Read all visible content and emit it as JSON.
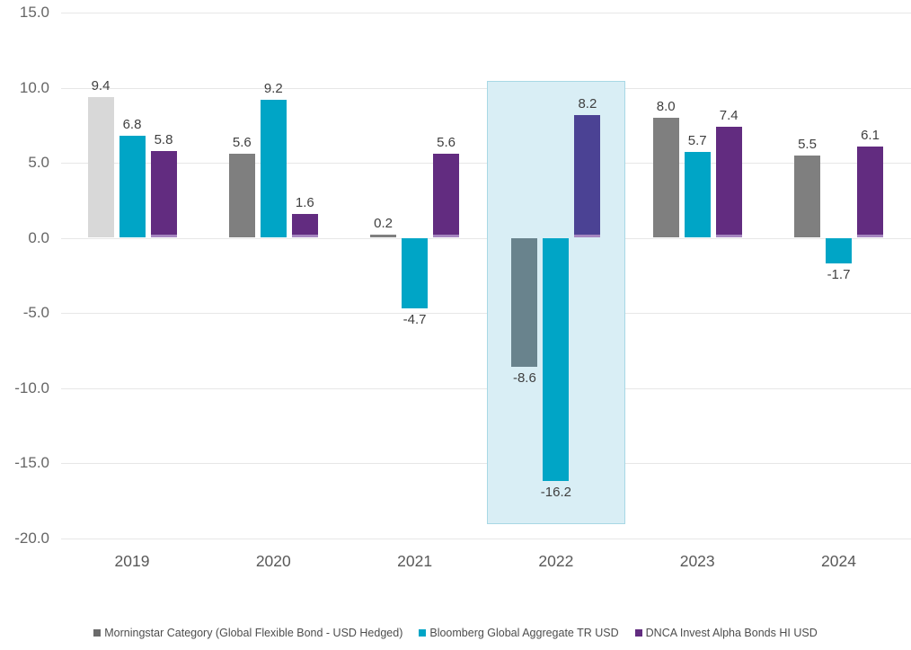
{
  "chart_data": {
    "type": "bar",
    "title": "",
    "xlabel": "",
    "ylabel": "",
    "categories": [
      "2019",
      "2020",
      "2021",
      "2022",
      "2023",
      "2024"
    ],
    "series": [
      {
        "name": "Morningstar Category (Global Flexible Bond - USD Hedged)",
        "color": "#7f7f7f",
        "legend_swatch_color": "#6b6b6b",
        "values": [
          9.4,
          5.6,
          0.2,
          -8.6,
          8.0,
          5.5
        ]
      },
      {
        "name": "Bloomberg Global Aggregate TR USD",
        "color": "#00a5c6",
        "legend_swatch_color": "#00a5c6",
        "values": [
          6.8,
          9.2,
          -4.7,
          -16.2,
          5.7,
          -1.7
        ]
      },
      {
        "name": "DNCA Invest Alpha Bonds HI USD",
        "color": "#622c80",
        "legend_swatch_color": "#622c80",
        "base_stripe_color": "#a687c0",
        "values": [
          5.8,
          1.6,
          5.6,
          8.2,
          7.4,
          6.1
        ]
      }
    ],
    "bar_color_overrides": [
      {
        "series": 0,
        "category": "2019",
        "color": "#d8d8d8"
      },
      {
        "series": 0,
        "category": "2022",
        "color": "#69838d"
      },
      {
        "series": 2,
        "category": "2022",
        "color": "#4b4294"
      }
    ],
    "highlight": {
      "category": "2022",
      "fill": "#d9eef5",
      "border": "#a8d8e5"
    },
    "y_axis": {
      "ylim": [
        -20,
        15
      ],
      "ticks": [
        15,
        10,
        5,
        0,
        -5,
        -10,
        -15,
        -20
      ],
      "tick_labels": [
        "15.0",
        "10.0",
        "5.0",
        "0.0",
        "-5.0",
        "-10.0",
        "-15.0",
        "-20.0"
      ]
    },
    "grid": true,
    "legend_position": "bottom",
    "value_label_decimals": 1
  },
  "colors": {
    "background": "#ffffff",
    "grid": "#e7e7e7",
    "axis_text": "#666666",
    "x_axis_text": "#595959",
    "value_label_text": "#3f3f3f",
    "legend_text": "#4d4d4d"
  }
}
